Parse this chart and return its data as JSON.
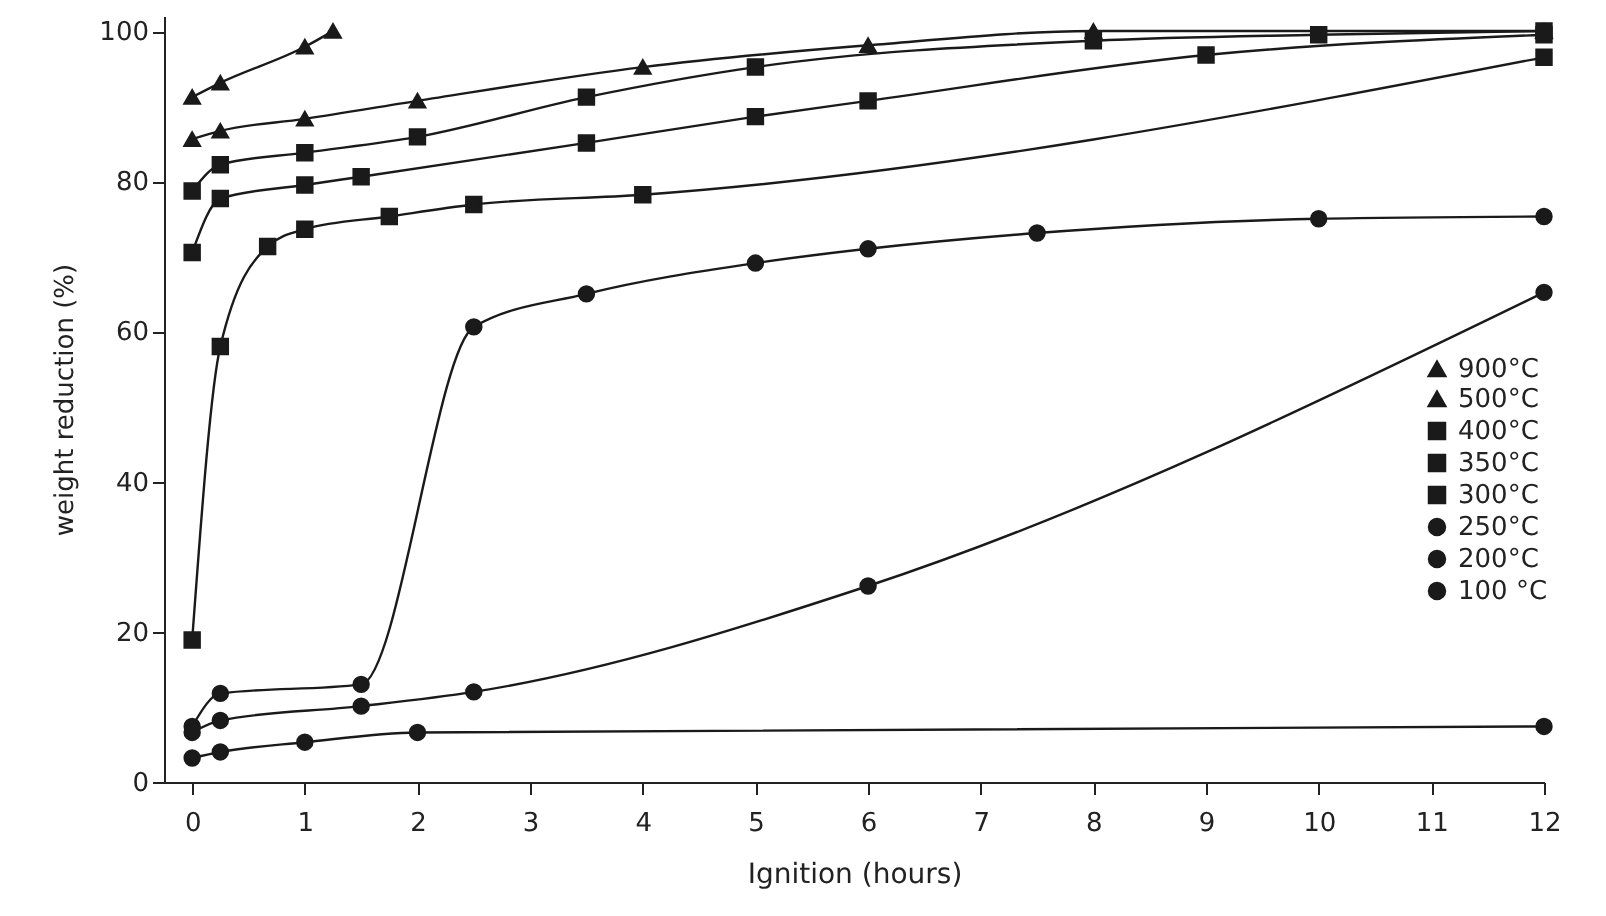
{
  "chart_data": {
    "type": "line",
    "xlabel": "Ignition (hours)",
    "ylabel": "weight reduction (%)",
    "xlim": [
      -0.25,
      12
    ],
    "ylim": [
      0,
      102
    ],
    "xticks": [
      0,
      1,
      2,
      3,
      4,
      5,
      6,
      7,
      8,
      9,
      10,
      11,
      12
    ],
    "yticks": [
      0,
      20,
      40,
      60,
      80,
      100
    ],
    "grid": false,
    "legend": "right",
    "line_style": "solid",
    "series": [
      {
        "name": "900°C",
        "color": "#1a1a1a",
        "marker": "triangle",
        "x": [
          0,
          0.25,
          1,
          1.25
        ],
        "values": [
          91.2,
          93.1,
          97.9,
          100
        ]
      },
      {
        "name": "500°C",
        "color": "#1a1a1a",
        "marker": "triangle",
        "x": [
          0,
          0.25,
          1,
          2,
          4,
          6,
          8,
          12
        ],
        "values": [
          85.6,
          86.7,
          88.3,
          90.7,
          95.2,
          98.1,
          100,
          100
        ]
      },
      {
        "name": "400°C",
        "color": "#1a1a1a",
        "marker": "square",
        "x": [
          0,
          0.25,
          1,
          2,
          3.5,
          5,
          8,
          10,
          12
        ],
        "values": [
          78.7,
          82.2,
          83.8,
          85.9,
          91.2,
          95.2,
          98.7,
          99.5,
          100
        ]
      },
      {
        "name": "350°C",
        "color": "#1a1a1a",
        "marker": "square",
        "x": [
          0,
          0.25,
          1,
          1.5,
          3.5,
          5,
          6,
          9,
          12
        ],
        "values": [
          70.5,
          77.7,
          79.5,
          80.6,
          85.1,
          88.6,
          90.7,
          96.8,
          99.5
        ]
      },
      {
        "name": "300°C",
        "color": "#1a1a1a",
        "marker": "square",
        "x": [
          0,
          0.25,
          0.67,
          1,
          1.75,
          2.5,
          4,
          12
        ],
        "values": [
          18.9,
          58,
          71.3,
          73.6,
          75.3,
          76.9,
          78.2,
          96.5
        ]
      },
      {
        "name": "250°C",
        "color": "#1a1a1a",
        "marker": "circle",
        "x": [
          0,
          0.25,
          1.5,
          2.5,
          3.5,
          5,
          6,
          7.5,
          10,
          12
        ],
        "values": [
          7.4,
          11.8,
          13,
          60.6,
          65,
          69.1,
          71,
          73.1,
          75,
          75.3
        ]
      },
      {
        "name": "200°C",
        "color": "#1a1a1a",
        "marker": "circle",
        "x": [
          0,
          0.25,
          1.5,
          2.5,
          6,
          12
        ],
        "values": [
          6.6,
          8.2,
          10.1,
          12,
          26.1,
          65.2
        ]
      },
      {
        "name": "100 °C",
        "color": "#1a1a1a",
        "marker": "circle",
        "x": [
          0,
          0.25,
          1,
          2,
          12
        ],
        "values": [
          3.2,
          4,
          5.3,
          6.6,
          7.4
        ]
      }
    ]
  }
}
